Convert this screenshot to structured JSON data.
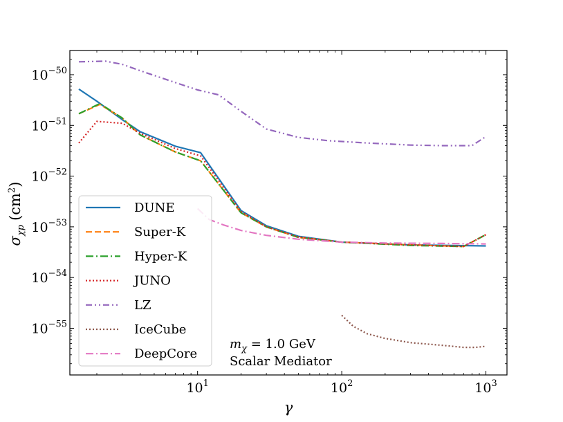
{
  "chart_data": {
    "type": "line",
    "title": "",
    "xlabel": "γ",
    "ylabel_symbol": "σ",
    "ylabel_subscript": "χp",
    "ylabel_unit_open": "(cm",
    "ylabel_unit_power": "2",
    "ylabel_unit_close": ")",
    "xscale": "log",
    "yscale": "log",
    "xlim": [
      1.3,
      1400
    ],
    "ylim": [
      1.2e-56,
      3e-50
    ],
    "grid": false,
    "legend_position": "center-left",
    "x_ticks": [
      {
        "value": 10,
        "base": "10",
        "exp": "1"
      },
      {
        "value": 100,
        "base": "10",
        "exp": "2"
      },
      {
        "value": 1000,
        "base": "10",
        "exp": "3"
      }
    ],
    "y_ticks": [
      {
        "value": 1e-55,
        "base": "10",
        "exp": "−55"
      },
      {
        "value": 1e-54,
        "base": "10",
        "exp": "−54"
      },
      {
        "value": 1e-53,
        "base": "10",
        "exp": "−53"
      },
      {
        "value": 1e-52,
        "base": "10",
        "exp": "−52"
      },
      {
        "value": 1e-51,
        "base": "10",
        "exp": "−51"
      },
      {
        "value": 1e-50,
        "base": "10",
        "exp": "−50"
      }
    ],
    "annotation": {
      "mass_symbol": "m",
      "mass_subscript": "χ",
      "mass_value": " = 1.0 GeV",
      "mediator": "Scalar Mediator"
    },
    "series": [
      {
        "name": "DUNE",
        "color": "#1f77b4",
        "dash": "solid",
        "x": [
          1.5,
          2,
          3,
          4,
          7,
          10.5,
          20,
          30,
          50,
          100,
          300,
          1000
        ],
        "y": [
          5.2e-51,
          3e-51,
          1.3e-51,
          7.5e-52,
          3.9e-52,
          2.9e-52,
          2.1e-53,
          1.05e-53,
          6.5e-54,
          5e-54,
          4.4e-54,
          4.2e-54
        ]
      },
      {
        "name": "Super-K",
        "color": "#ff7f0e",
        "dash": "dashed",
        "x": [
          1.5,
          2.1,
          3,
          4,
          7,
          10.5,
          20,
          30,
          50,
          100,
          300,
          700,
          1000
        ],
        "y": [
          1.7e-51,
          2.6e-51,
          1.4e-51,
          6.5e-52,
          3e-52,
          2e-52,
          1.9e-53,
          1e-53,
          6.2e-54,
          5e-54,
          4.4e-54,
          4.1e-54,
          7e-54
        ]
      },
      {
        "name": "Hyper-K",
        "color": "#2ca02c",
        "dash": "dashdot",
        "x": [
          1.5,
          2.1,
          3,
          4,
          7,
          10.5,
          20,
          30,
          50,
          100,
          300,
          700,
          1000
        ],
        "y": [
          1.7e-51,
          2.7e-51,
          1.4e-51,
          6.5e-52,
          3e-52,
          2e-52,
          1.9e-53,
          1e-53,
          6.2e-54,
          5e-54,
          4.3e-54,
          4.1e-54,
          7e-54
        ]
      },
      {
        "name": "JUNO",
        "color": "#d62728",
        "dash": "dotted",
        "x": [
          1.5,
          2,
          3,
          4,
          7,
          10.5,
          20,
          30,
          50,
          100,
          300,
          700,
          1000
        ],
        "y": [
          4.5e-52,
          1.2e-51,
          1.1e-51,
          7e-52,
          3.5e-52,
          2.5e-52,
          2e-53,
          1e-53,
          6.3e-54,
          5e-54,
          4.4e-54,
          4.1e-54,
          7e-54
        ]
      },
      {
        "name": "LZ",
        "color": "#9467bd",
        "dash": "dashdotdot",
        "x": [
          1.5,
          2.3,
          3,
          4,
          7,
          10,
          14,
          20,
          30,
          50,
          80,
          150,
          300,
          500,
          800,
          1000
        ],
        "y": [
          1.8e-50,
          1.85e-50,
          1.6e-50,
          1.2e-50,
          7e-51,
          5e-51,
          4e-51,
          1.9e-51,
          8.5e-52,
          5.8e-52,
          5e-52,
          4.5e-52,
          4.1e-52,
          4e-52,
          4e-52,
          6e-52
        ]
      },
      {
        "name": "IceCube",
        "color": "#8c564b",
        "dash": "dotted",
        "x": [
          100,
          120,
          150,
          200,
          300,
          500,
          700,
          850,
          1000
        ],
        "y": [
          1.8e-55,
          1.1e-55,
          7.8e-56,
          6.3e-56,
          5.2e-56,
          4.6e-56,
          4.2e-56,
          4.2e-56,
          4.4e-56
        ]
      },
      {
        "name": "DeepCore",
        "color": "#e377c2",
        "dash": "dashdot",
        "x": [
          10,
          12,
          15,
          20,
          30,
          50,
          100,
          200,
          500,
          1000
        ],
        "y": [
          2.3e-53,
          1.4e-53,
          1.1e-53,
          8.5e-54,
          6.8e-54,
          5.7e-54,
          5e-54,
          4.8e-54,
          4.7e-54,
          4.6e-54
        ]
      }
    ]
  }
}
